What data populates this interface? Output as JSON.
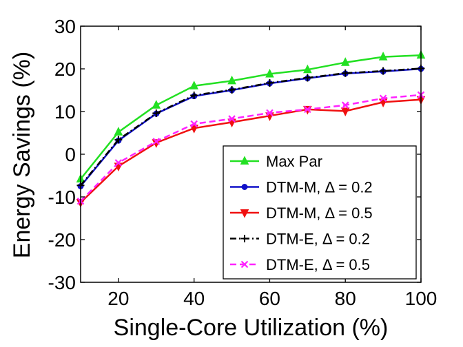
{
  "chart_data": {
    "type": "line",
    "title": "",
    "xlabel": "Single-Core Utilization (%)",
    "ylabel": "Energy Savings (%)",
    "xlim": [
      10,
      100
    ],
    "ylim": [
      -30,
      30
    ],
    "xticks": [
      20,
      40,
      60,
      80,
      100
    ],
    "yticks": [
      -30,
      -20,
      -10,
      0,
      10,
      20,
      30
    ],
    "grid": false,
    "legend_position": "bottom-right",
    "x": [
      10,
      20,
      30,
      40,
      50,
      60,
      70,
      80,
      90,
      100
    ],
    "series": [
      {
        "name": "Max Par",
        "color": "#22e022",
        "marker": "triangle-up",
        "dash": "solid",
        "values": [
          -5.8,
          5.2,
          11.5,
          16.0,
          17.2,
          18.8,
          19.8,
          21.5,
          22.8,
          23.2
        ]
      },
      {
        "name": "DTM-M, Δ = 0.2",
        "color": "#1010c8",
        "marker": "circle",
        "dash": "solid",
        "values": [
          -7.5,
          3.2,
          9.5,
          13.6,
          15.0,
          16.6,
          17.8,
          18.9,
          19.4,
          20.0
        ]
      },
      {
        "name": "DTM-M, Δ = 0.5",
        "color": "#f01010",
        "marker": "triangle-down",
        "dash": "solid",
        "values": [
          -11.3,
          -2.8,
          2.7,
          6.1,
          7.5,
          9.0,
          10.5,
          10.1,
          12.2,
          12.8
        ]
      },
      {
        "name": "DTM-E, Δ = 0.2",
        "color": "#000000",
        "marker": "plus",
        "dash": "dashdot",
        "values": [
          -7.3,
          3.4,
          9.6,
          13.8,
          15.1,
          16.7,
          17.9,
          19.0,
          19.5,
          20.1
        ]
      },
      {
        "name": "DTM-E, Δ = 0.5",
        "color": "#ff22ff",
        "marker": "x",
        "dash": "dashed",
        "values": [
          -11.0,
          -2.0,
          3.0,
          7.1,
          8.3,
          9.7,
          10.5,
          11.5,
          13.1,
          13.9
        ]
      }
    ]
  }
}
